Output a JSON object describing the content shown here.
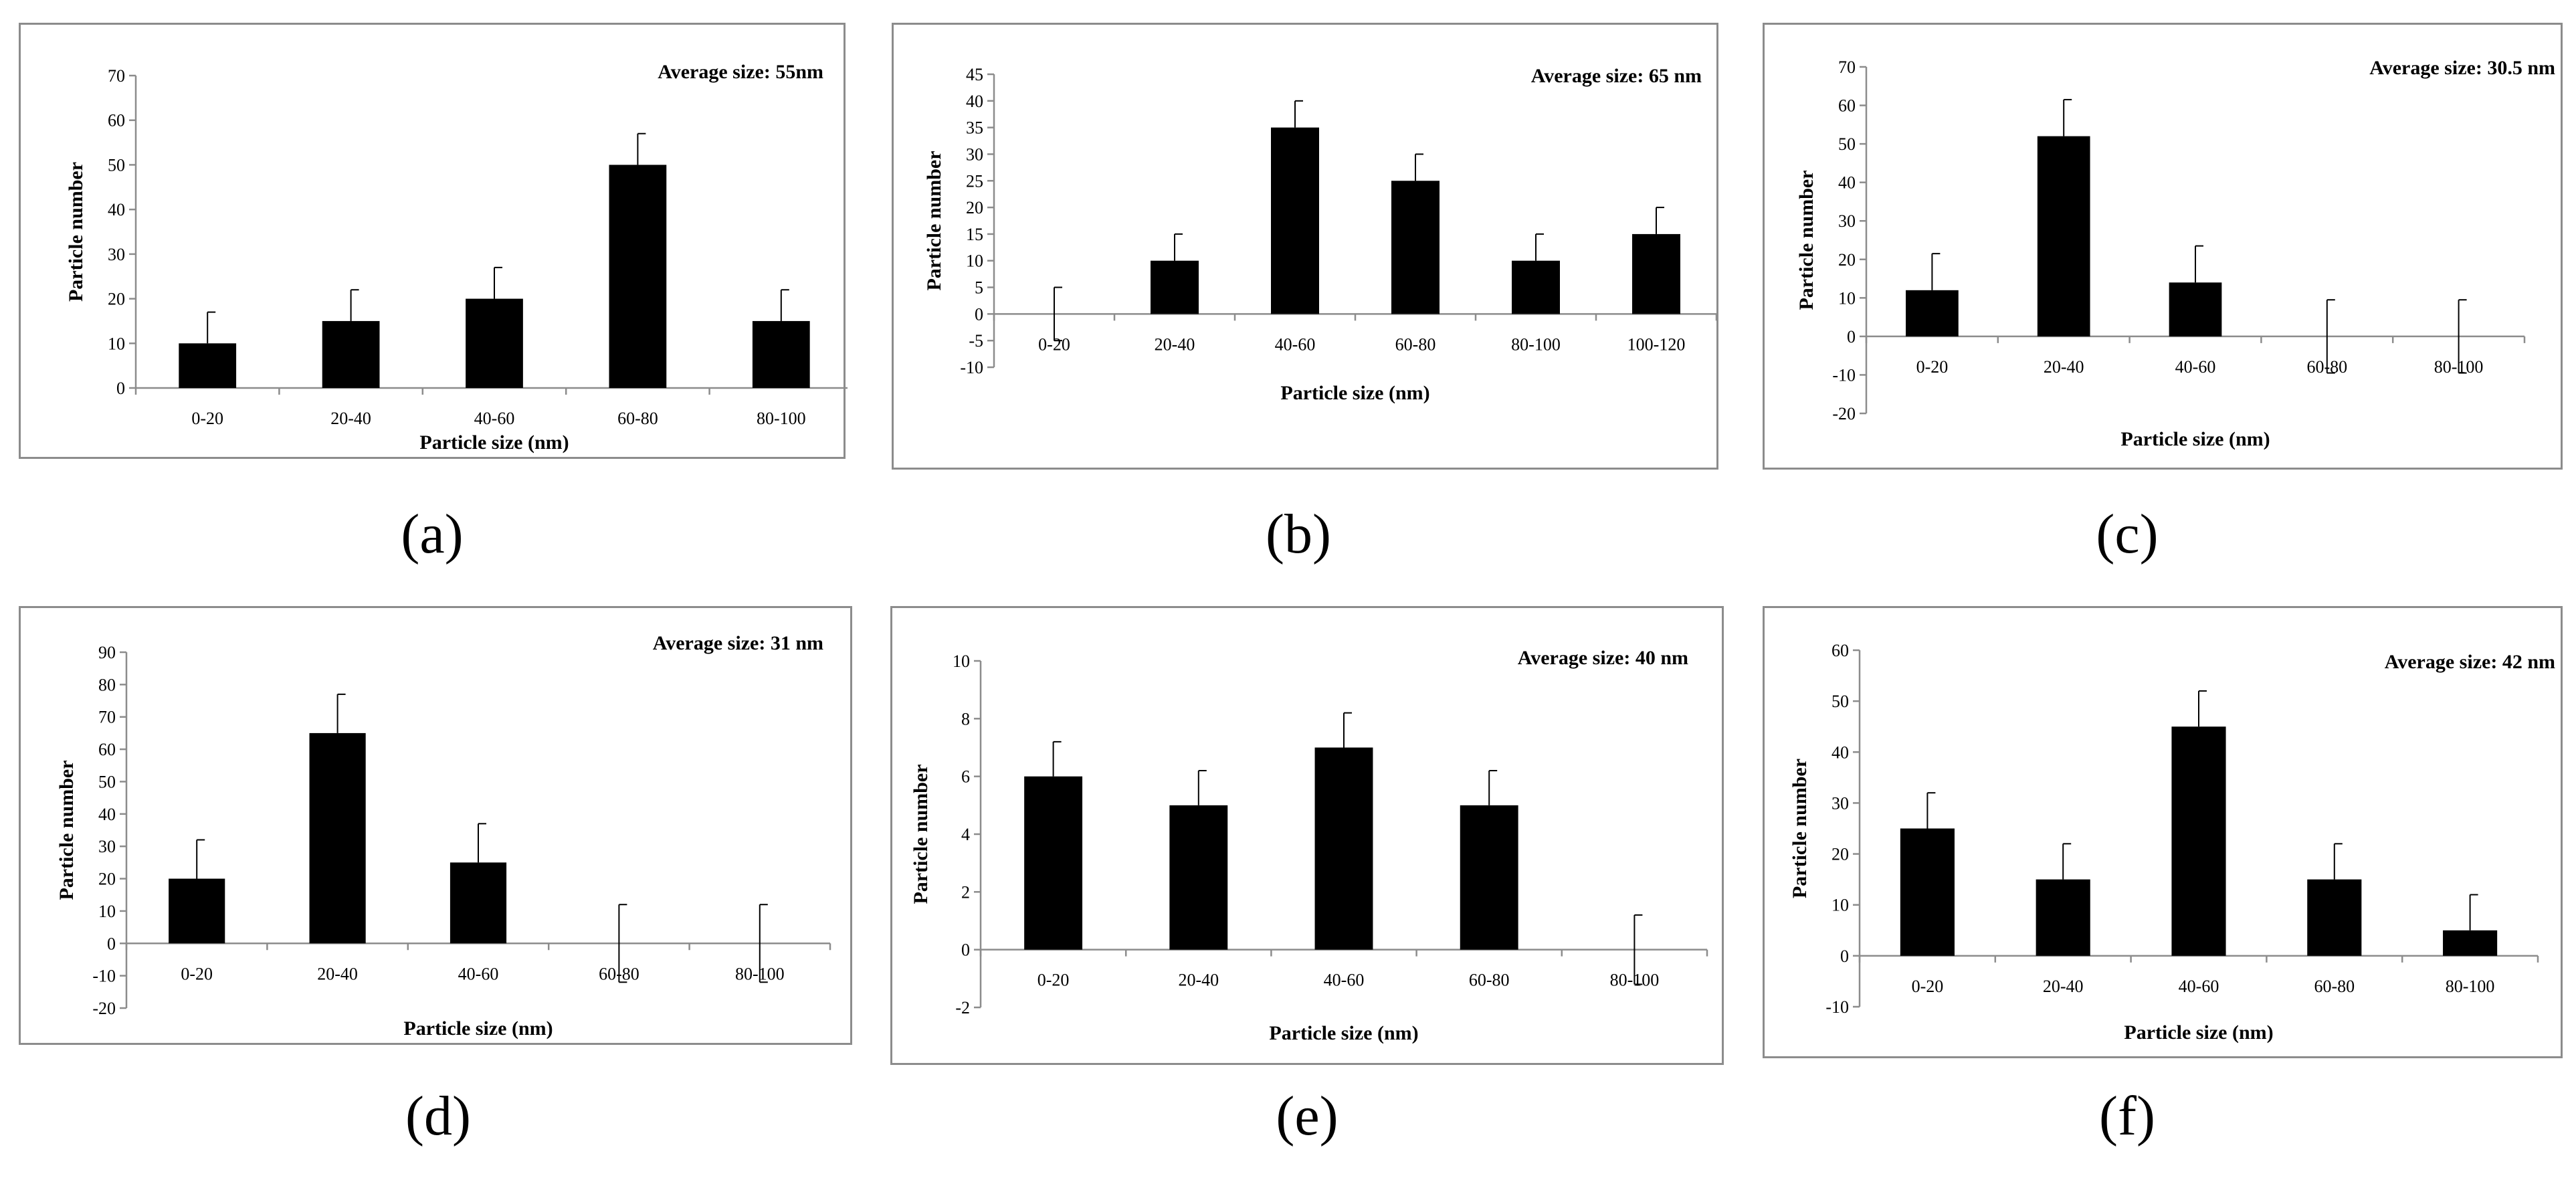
{
  "chart_data": [
    {
      "type": "bar",
      "caption": "(a)",
      "annotation": "Average size: 55nm",
      "xlabel": "Particle size (nm)",
      "ylabel": "Particle number",
      "categories": [
        "0-20",
        "20-40",
        "40-60",
        "60-80",
        "80-100"
      ],
      "values": [
        10,
        15,
        20,
        50,
        15
      ],
      "error": [
        7,
        7,
        7,
        7,
        7
      ],
      "ylim": [
        0,
        70
      ],
      "ystep": 10,
      "bar_color": "#000000"
    },
    {
      "type": "bar",
      "caption": "(b)",
      "annotation": "Average size: 65 nm",
      "xlabel": "Particle size (nm)",
      "ylabel": "Particle number",
      "categories": [
        "0-20",
        "20-40",
        "40-60",
        "60-80",
        "80-100",
        "100-120"
      ],
      "values": [
        0,
        10,
        35,
        25,
        10,
        15
      ],
      "error": [
        5,
        5,
        5,
        5,
        5,
        5
      ],
      "ylim": [
        -10,
        45
      ],
      "ystep": 5,
      "bar_color": "#000000"
    },
    {
      "type": "bar",
      "caption": "(c)",
      "annotation": "Average size: 30.5 nm",
      "xlabel": "Particle size (nm)",
      "ylabel": "Particle number",
      "categories": [
        "0-20",
        "20-40",
        "40-60",
        "60-80",
        "80-100"
      ],
      "values": [
        12,
        52,
        14,
        0,
        0
      ],
      "error": [
        9.5,
        9.5,
        9.5,
        9.5,
        9.5
      ],
      "ylim": [
        -20,
        70
      ],
      "ystep": 10,
      "bar_color": "#000000"
    },
    {
      "type": "bar",
      "caption": "(d)",
      "annotation": "Average size: 31 nm",
      "xlabel": "Particle size (nm)",
      "ylabel": "Particle number",
      "categories": [
        "0-20",
        "20-40",
        "40-60",
        "60-80",
        "80-100"
      ],
      "values": [
        20,
        65,
        25,
        0,
        0
      ],
      "error": [
        12,
        12,
        12,
        12,
        12
      ],
      "ylim": [
        -20,
        90
      ],
      "ystep": 10,
      "bar_color": "#000000"
    },
    {
      "type": "bar",
      "caption": "(e)",
      "annotation": "Average size: 40 nm",
      "xlabel": "Particle size (nm)",
      "ylabel": "Particle number",
      "categories": [
        "0-20",
        "20-40",
        "40-60",
        "60-80",
        "80-100"
      ],
      "values": [
        6,
        5,
        7,
        5,
        0
      ],
      "error": [
        1.2,
        1.2,
        1.2,
        1.2,
        1.2
      ],
      "ylim": [
        -2,
        10
      ],
      "ystep": 2,
      "bar_color": "#000000"
    },
    {
      "type": "bar",
      "caption": "(f)",
      "annotation": "Average size: 42 nm",
      "xlabel": "Particle size (nm)",
      "ylabel": "Particle number",
      "categories": [
        "0-20",
        "20-40",
        "40-60",
        "60-80",
        "80-100"
      ],
      "values": [
        25,
        15,
        45,
        15,
        5
      ],
      "error": [
        7,
        7,
        7,
        7,
        7
      ],
      "ylim": [
        -10,
        60
      ],
      "ystep": 10,
      "bar_color": "#000000"
    }
  ]
}
